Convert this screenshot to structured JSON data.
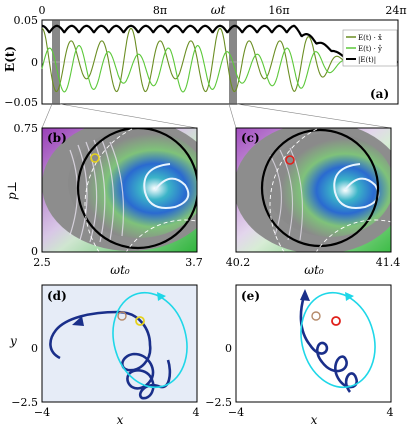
{
  "figure": {
    "panel_a": {
      "label": "(a)",
      "xlabel": "ωt",
      "ylabel": "E(t)",
      "xticks": [
        "0",
        "8π",
        "16π",
        "24π"
      ],
      "yticks": [
        "0.05",
        "0",
        "−0.05"
      ],
      "legend": [
        "E(t) · x̂",
        "E(t) · ŷ",
        "|E(t)|"
      ]
    },
    "panel_b": {
      "label": "(b)",
      "xlabel": "ωt₀",
      "ylabel": "p⊥",
      "xticks": [
        "2.5",
        "3.7"
      ],
      "yticks": [
        "0.75",
        "0"
      ]
    },
    "panel_c": {
      "label": "(c)",
      "xlabel": "ωt₀",
      "xticks": [
        "40.2",
        "41.4"
      ]
    },
    "panel_d": {
      "label": "(d)",
      "xlabel": "x",
      "ylabel": "y",
      "xticks": [
        "−4",
        "4"
      ],
      "yticks": [
        "0",
        "−2.5"
      ]
    },
    "panel_e": {
      "label": "(e)",
      "xlabel": "x",
      "xticks": [
        "−4",
        "4"
      ],
      "yticks": [
        "0",
        "−2.5"
      ]
    },
    "colors": {
      "green_dark": "#6b8e23",
      "green_light": "#5cc83a",
      "envelope": "#000000",
      "trajectory": "#1a2f8a",
      "orbit": "#1fd7e8",
      "marker_yellow": "#e6d21c",
      "marker_red": "#e0201a",
      "marker_tan": "#b58a6a",
      "panel_d_bg": "#e6ecf7"
    }
  },
  "chart_data": [
    {
      "panel": "a",
      "type": "line",
      "xlabel": "ωt",
      "ylabel": "E(t)",
      "xlim_pi": [
        0,
        24
      ],
      "ylim": [
        -0.05,
        0.05
      ],
      "series": [
        {
          "name": "E(t) · x̂",
          "amplitude_pattern": "oscillating",
          "period_pi": 2,
          "amp_min": 0.025,
          "amp_max": 0.05,
          "decay_start_pi": 17
        },
        {
          "name": "E(t) · ŷ",
          "amplitude_pattern": "oscillating"
        },
        {
          "name": "|E(t)|",
          "baseline": 0.035,
          "ripple": 0.008,
          "decay_start_pi": 17,
          "end_value": 0.0
        }
      ],
      "shaded_intervals_pi": [
        [
          0.8,
          1.2
        ],
        [
          15.8,
          16.2
        ]
      ]
    }
  ]
}
